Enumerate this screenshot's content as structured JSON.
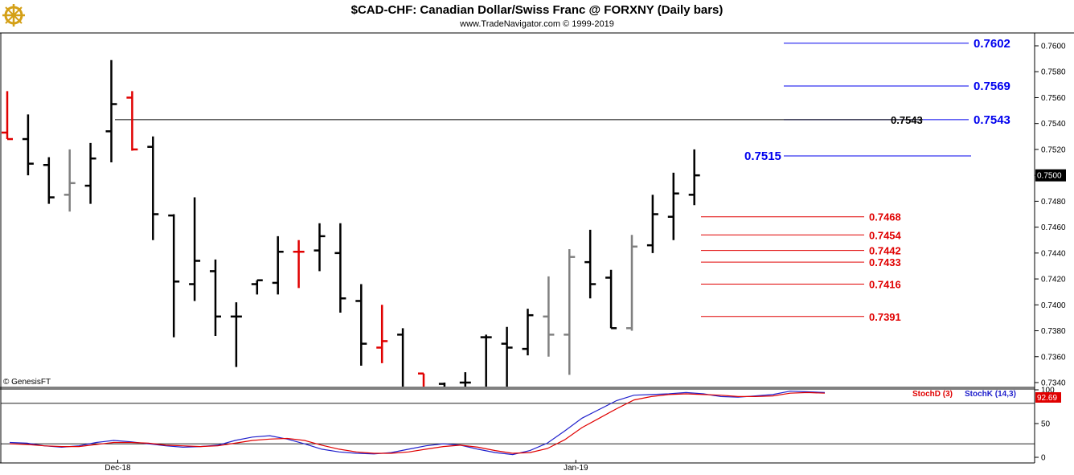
{
  "header": {
    "title": "$CAD-CHF:  Canadian Dollar/Swiss Franc @ FORXNY  (Daily bars)",
    "subtitle": "www.TradeNavigator.com © 1999-2019",
    "logo_icon": "ship-wheel-logo-icon"
  },
  "watermark": "© GenesisFT",
  "colors": {
    "up_bar": "#000000",
    "down_bar": "#e00000",
    "neutral_bar": "#808080",
    "target_blue": "#0000ee",
    "support_red": "#e00000",
    "stoch_k": "#2020cc",
    "stoch_d": "#e00000"
  },
  "chart_data": [
    {
      "type": "ohlc",
      "title": "$CAD-CHF:  Canadian Dollar/Swiss Franc @ FORXNY  (Daily bars)",
      "y_range": [
        0.7332,
        0.7618
      ],
      "y_ticks": [
        "0.7340",
        "0.7360",
        "0.7380",
        "0.7400",
        "0.7420",
        "0.7440",
        "0.7460",
        "0.7480",
        "0.7500",
        "0.7520",
        "0.7540",
        "0.7560",
        "0.7580",
        "0.7600"
      ],
      "x_labels": [
        {
          "label": "Dec-18",
          "index": 5
        },
        {
          "label": "Jan-19",
          "index": 27
        }
      ],
      "last_price": "0.7500",
      "bars": [
        {
          "o": 0.7533,
          "h": 0.7565,
          "l": 0.7528,
          "c": 0.7528,
          "color": "red"
        },
        {
          "o": 0.7528,
          "h": 0.7547,
          "l": 0.75,
          "c": 0.7509,
          "color": "black"
        },
        {
          "o": 0.7508,
          "h": 0.7514,
          "l": 0.7478,
          "c": 0.7483,
          "color": "black"
        },
        {
          "o": 0.7485,
          "h": 0.752,
          "l": 0.7472,
          "c": 0.7494,
          "color": "gray"
        },
        {
          "o": 0.7492,
          "h": 0.7525,
          "l": 0.7478,
          "c": 0.7513,
          "color": "black"
        },
        {
          "o": 0.7534,
          "h": 0.7589,
          "l": 0.751,
          "c": 0.7555,
          "color": "black"
        },
        {
          "o": 0.756,
          "h": 0.7565,
          "l": 0.7519,
          "c": 0.752,
          "color": "red"
        },
        {
          "o": 0.7522,
          "h": 0.753,
          "l": 0.745,
          "c": 0.747,
          "color": "black"
        },
        {
          "o": 0.7469,
          "h": 0.747,
          "l": 0.7375,
          "c": 0.7418,
          "color": "black"
        },
        {
          "o": 0.7416,
          "h": 0.7483,
          "l": 0.7403,
          "c": 0.7434,
          "color": "black"
        },
        {
          "o": 0.7426,
          "h": 0.7435,
          "l": 0.7376,
          "c": 0.7391,
          "color": "black"
        },
        {
          "o": 0.7391,
          "h": 0.7402,
          "l": 0.7352,
          "c": 0.7391,
          "color": "black"
        },
        {
          "o": 0.7416,
          "h": 0.7419,
          "l": 0.7408,
          "c": 0.7419,
          "color": "black"
        },
        {
          "o": 0.7417,
          "h": 0.7453,
          "l": 0.7408,
          "c": 0.7441,
          "color": "black"
        },
        {
          "o": 0.7441,
          "h": 0.745,
          "l": 0.7413,
          "c": 0.7441,
          "color": "red"
        },
        {
          "o": 0.7442,
          "h": 0.7463,
          "l": 0.7426,
          "c": 0.7453,
          "color": "black"
        },
        {
          "o": 0.744,
          "h": 0.7463,
          "l": 0.7394,
          "c": 0.7405,
          "color": "black"
        },
        {
          "o": 0.7403,
          "h": 0.7416,
          "l": 0.7353,
          "c": 0.737,
          "color": "black"
        },
        {
          "o": 0.7367,
          "h": 0.74,
          "l": 0.7355,
          "c": 0.7372,
          "color": "red"
        },
        {
          "o": 0.7377,
          "h": 0.7382,
          "l": 0.7332,
          "c": 0.7332,
          "color": "black"
        },
        {
          "o": 0.7347,
          "h": 0.7347,
          "l": 0.7332,
          "c": 0.7332,
          "color": "red"
        },
        {
          "o": 0.7339,
          "h": 0.734,
          "l": 0.7332,
          "c": 0.7332,
          "color": "black"
        },
        {
          "o": 0.734,
          "h": 0.7348,
          "l": 0.7332,
          "c": 0.734,
          "color": "black"
        },
        {
          "o": 0.7375,
          "h": 0.7377,
          "l": 0.7332,
          "c": 0.7375,
          "color": "black"
        },
        {
          "o": 0.737,
          "h": 0.7383,
          "l": 0.7334,
          "c": 0.7367,
          "color": "black"
        },
        {
          "o": 0.7366,
          "h": 0.7397,
          "l": 0.7361,
          "c": 0.7392,
          "color": "black"
        },
        {
          "o": 0.7391,
          "h": 0.7422,
          "l": 0.736,
          "c": 0.7377,
          "color": "gray"
        },
        {
          "o": 0.7377,
          "h": 0.7443,
          "l": 0.7346,
          "c": 0.7437,
          "color": "gray"
        },
        {
          "o": 0.7433,
          "h": 0.7458,
          "l": 0.7405,
          "c": 0.7416,
          "color": "black"
        },
        {
          "o": 0.7421,
          "h": 0.7427,
          "l": 0.7382,
          "c": 0.7382,
          "color": "black"
        },
        {
          "o": 0.7382,
          "h": 0.7454,
          "l": 0.738,
          "c": 0.7445,
          "color": "gray"
        },
        {
          "o": 0.7446,
          "h": 0.7485,
          "l": 0.744,
          "c": 0.747,
          "color": "black"
        },
        {
          "o": 0.7468,
          "h": 0.7502,
          "l": 0.745,
          "c": 0.7486,
          "color": "black"
        },
        {
          "o": 0.7485,
          "h": 0.752,
          "l": 0.7477,
          "c": 0.75,
          "color": "black"
        }
      ],
      "levels": [
        {
          "value": 0.7602,
          "label": "0.7602",
          "color": "blue",
          "style": "target"
        },
        {
          "value": 0.7569,
          "label": "0.7569",
          "color": "blue",
          "style": "target"
        },
        {
          "value": 0.7543,
          "label": "0.7543",
          "color": "blue",
          "style": "target"
        },
        {
          "value": 0.7543,
          "label": "0.7543",
          "color": "black",
          "style": "horizontal-line"
        },
        {
          "value": 0.7515,
          "label": "0.7515",
          "color": "blue",
          "style": "left-label"
        },
        {
          "value": 0.7468,
          "label": "0.7468",
          "color": "red",
          "style": "support"
        },
        {
          "value": 0.7454,
          "label": "0.7454",
          "color": "red",
          "style": "support"
        },
        {
          "value": 0.7442,
          "label": "0.7442",
          "color": "red",
          "style": "support"
        },
        {
          "value": 0.7433,
          "label": "0.7433",
          "color": "red",
          "style": "support"
        },
        {
          "value": 0.7416,
          "label": "0.7416",
          "color": "red",
          "style": "support"
        },
        {
          "value": 0.7391,
          "label": "0.7391",
          "color": "red",
          "style": "support"
        }
      ]
    },
    {
      "type": "line",
      "title": "",
      "y_range": [
        0,
        100
      ],
      "y_ticks": [
        "0",
        "50",
        "100"
      ],
      "last_value": "92.69",
      "series": [
        {
          "name": "StochK (14,3)",
          "color": "blue",
          "values": [
            22,
            21,
            17,
            15,
            17,
            22,
            25,
            23,
            20,
            17,
            15,
            16,
            18,
            25,
            30,
            32,
            27,
            20,
            12,
            8,
            6,
            5,
            7,
            12,
            17,
            20,
            18,
            12,
            7,
            4,
            10,
            21,
            39,
            58,
            71,
            84,
            92,
            93,
            94,
            96,
            94,
            90,
            89,
            91,
            93,
            98,
            97,
            96
          ]
        },
        {
          "name": "StochD (3)",
          "color": "red",
          "values": [
            20,
            19,
            17,
            16,
            16,
            19,
            22,
            22,
            21,
            18,
            17,
            16,
            17,
            21,
            25,
            27,
            28,
            25,
            18,
            12,
            8,
            6,
            6,
            8,
            12,
            16,
            18,
            15,
            10,
            6,
            7,
            13,
            26,
            44,
            58,
            72,
            85,
            90,
            93,
            94,
            93,
            92,
            90,
            90,
            91,
            95,
            96,
            95
          ]
        }
      ]
    }
  ]
}
